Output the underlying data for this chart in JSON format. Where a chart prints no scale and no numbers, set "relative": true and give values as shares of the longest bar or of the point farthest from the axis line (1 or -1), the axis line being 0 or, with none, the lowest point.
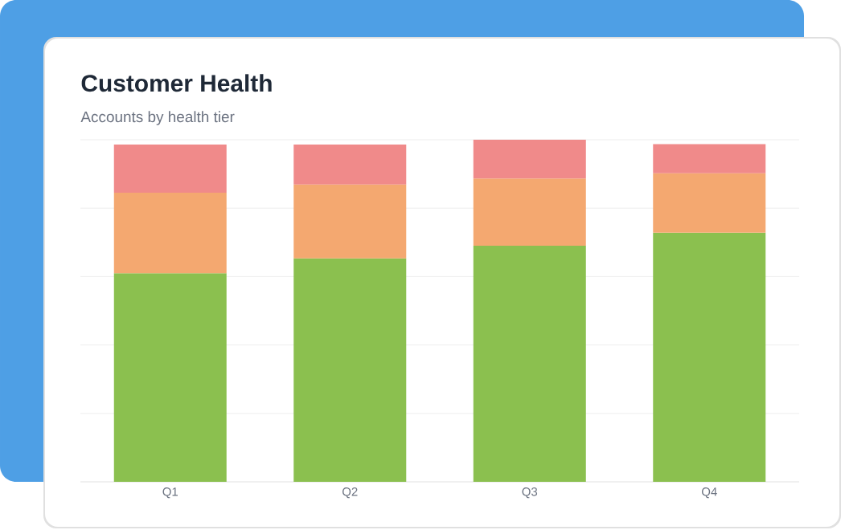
{
  "chart_data": {
    "type": "bar",
    "title": "Customer Health",
    "subtitle": "Accounts by health tier",
    "stacked": true,
    "relative": true,
    "grid": "y",
    "categories": [
      "Q1",
      "Q2",
      "Q3",
      "Q4"
    ],
    "series": [
      {
        "color": "#8bc04f",
        "values": [
          0.61,
          0.653,
          0.69,
          0.728
        ]
      },
      {
        "color": "#f4a870",
        "values": [
          0.235,
          0.216,
          0.197,
          0.174
        ]
      },
      {
        "color": "#f08a8a",
        "values": [
          0.141,
          0.117,
          0.113,
          0.085
        ]
      }
    ]
  }
}
